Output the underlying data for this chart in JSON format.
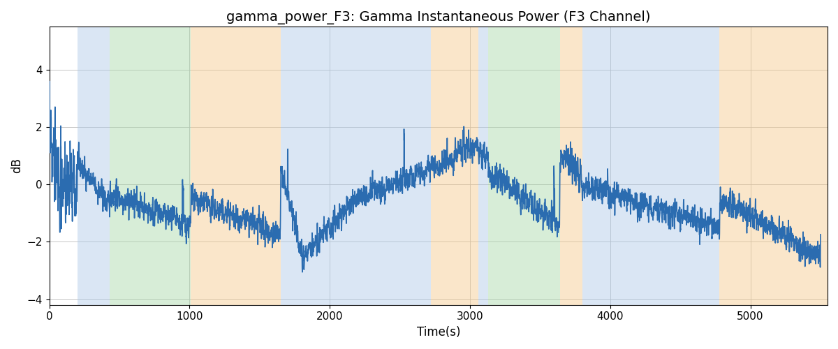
{
  "title": "gamma_power_F3: Gamma Instantaneous Power (F3 Channel)",
  "xlabel": "Time(s)",
  "ylabel": "dB",
  "ylim": [
    -4.2,
    5.5
  ],
  "xlim": [
    0,
    5550
  ],
  "line_color": "#2b6cb0",
  "line_width": 1.2,
  "bg_color": "#ffffff",
  "grid_color": "#bbbbbb",
  "title_fontsize": 14,
  "label_fontsize": 12,
  "tick_fontsize": 11,
  "bands": [
    {
      "start": 200,
      "end": 430,
      "color": "#adc9e8",
      "alpha": 0.45
    },
    {
      "start": 430,
      "end": 1010,
      "color": "#a8d8a8",
      "alpha": 0.45
    },
    {
      "start": 1010,
      "end": 1650,
      "color": "#f5c98a",
      "alpha": 0.45
    },
    {
      "start": 1650,
      "end": 2720,
      "color": "#adc9e8",
      "alpha": 0.45
    },
    {
      "start": 2720,
      "end": 3060,
      "color": "#f5c98a",
      "alpha": 0.45
    },
    {
      "start": 3060,
      "end": 3130,
      "color": "#adc9e8",
      "alpha": 0.45
    },
    {
      "start": 3130,
      "end": 3640,
      "color": "#a8d8a8",
      "alpha": 0.45
    },
    {
      "start": 3640,
      "end": 3800,
      "color": "#f5c98a",
      "alpha": 0.45
    },
    {
      "start": 3800,
      "end": 4780,
      "color": "#adc9e8",
      "alpha": 0.45
    },
    {
      "start": 4780,
      "end": 5550,
      "color": "#f5c98a",
      "alpha": 0.45
    }
  ],
  "seed": 42,
  "n_points": 5500,
  "time_end": 5500
}
